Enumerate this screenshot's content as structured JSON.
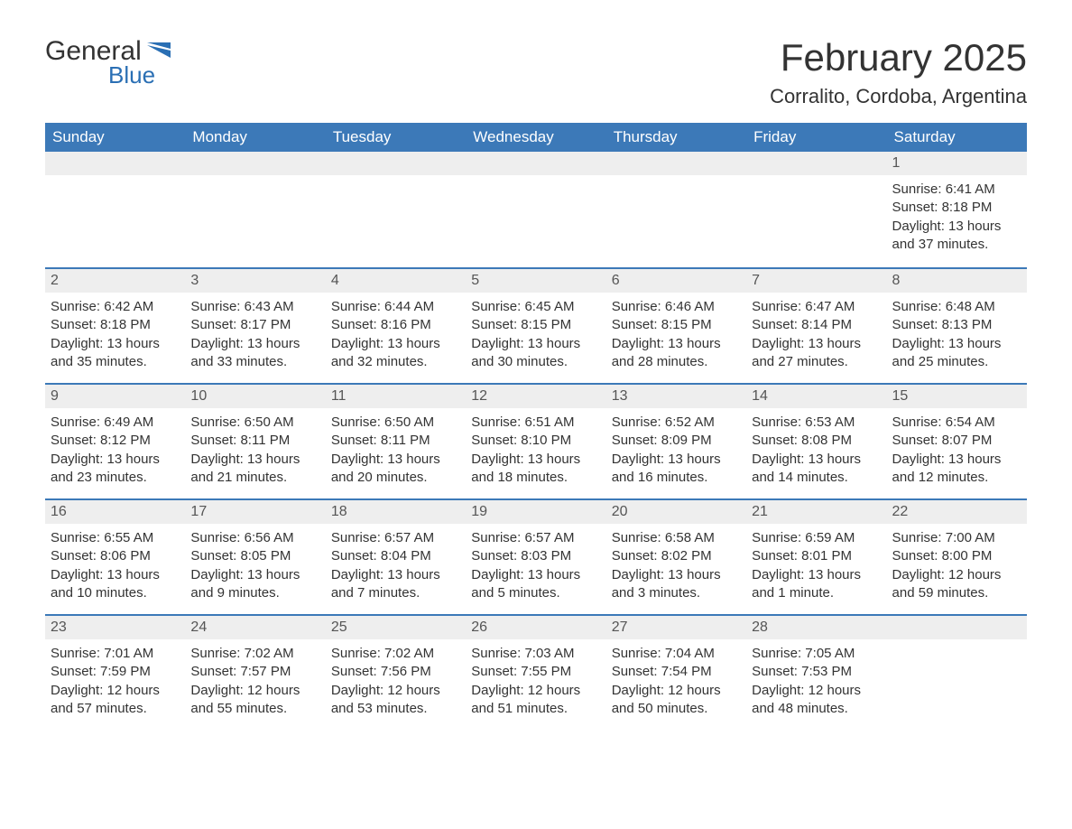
{
  "logo": {
    "word1": "General",
    "word2": "Blue"
  },
  "title": "February 2025",
  "location": "Corralito, Cordoba, Argentina",
  "colors": {
    "header_bg": "#3c79b8",
    "accent": "#2a6fb4",
    "daynum_bg": "#eeeeee",
    "text": "#333333",
    "bg": "#ffffff"
  },
  "weekdays": [
    "Sunday",
    "Monday",
    "Tuesday",
    "Wednesday",
    "Thursday",
    "Friday",
    "Saturday"
  ],
  "labels": {
    "sunrise": "Sunrise:",
    "sunset": "Sunset:",
    "daylight": "Daylight:"
  },
  "weeks": [
    [
      null,
      null,
      null,
      null,
      null,
      null,
      {
        "day": "1",
        "sunrise": "6:41 AM",
        "sunset": "8:18 PM",
        "daylight": "13 hours and 37 minutes."
      }
    ],
    [
      {
        "day": "2",
        "sunrise": "6:42 AM",
        "sunset": "8:18 PM",
        "daylight": "13 hours and 35 minutes."
      },
      {
        "day": "3",
        "sunrise": "6:43 AM",
        "sunset": "8:17 PM",
        "daylight": "13 hours and 33 minutes."
      },
      {
        "day": "4",
        "sunrise": "6:44 AM",
        "sunset": "8:16 PM",
        "daylight": "13 hours and 32 minutes."
      },
      {
        "day": "5",
        "sunrise": "6:45 AM",
        "sunset": "8:15 PM",
        "daylight": "13 hours and 30 minutes."
      },
      {
        "day": "6",
        "sunrise": "6:46 AM",
        "sunset": "8:15 PM",
        "daylight": "13 hours and 28 minutes."
      },
      {
        "day": "7",
        "sunrise": "6:47 AM",
        "sunset": "8:14 PM",
        "daylight": "13 hours and 27 minutes."
      },
      {
        "day": "8",
        "sunrise": "6:48 AM",
        "sunset": "8:13 PM",
        "daylight": "13 hours and 25 minutes."
      }
    ],
    [
      {
        "day": "9",
        "sunrise": "6:49 AM",
        "sunset": "8:12 PM",
        "daylight": "13 hours and 23 minutes."
      },
      {
        "day": "10",
        "sunrise": "6:50 AM",
        "sunset": "8:11 PM",
        "daylight": "13 hours and 21 minutes."
      },
      {
        "day": "11",
        "sunrise": "6:50 AM",
        "sunset": "8:11 PM",
        "daylight": "13 hours and 20 minutes."
      },
      {
        "day": "12",
        "sunrise": "6:51 AM",
        "sunset": "8:10 PM",
        "daylight": "13 hours and 18 minutes."
      },
      {
        "day": "13",
        "sunrise": "6:52 AM",
        "sunset": "8:09 PM",
        "daylight": "13 hours and 16 minutes."
      },
      {
        "day": "14",
        "sunrise": "6:53 AM",
        "sunset": "8:08 PM",
        "daylight": "13 hours and 14 minutes."
      },
      {
        "day": "15",
        "sunrise": "6:54 AM",
        "sunset": "8:07 PM",
        "daylight": "13 hours and 12 minutes."
      }
    ],
    [
      {
        "day": "16",
        "sunrise": "6:55 AM",
        "sunset": "8:06 PM",
        "daylight": "13 hours and 10 minutes."
      },
      {
        "day": "17",
        "sunrise": "6:56 AM",
        "sunset": "8:05 PM",
        "daylight": "13 hours and 9 minutes."
      },
      {
        "day": "18",
        "sunrise": "6:57 AM",
        "sunset": "8:04 PM",
        "daylight": "13 hours and 7 minutes."
      },
      {
        "day": "19",
        "sunrise": "6:57 AM",
        "sunset": "8:03 PM",
        "daylight": "13 hours and 5 minutes."
      },
      {
        "day": "20",
        "sunrise": "6:58 AM",
        "sunset": "8:02 PM",
        "daylight": "13 hours and 3 minutes."
      },
      {
        "day": "21",
        "sunrise": "6:59 AM",
        "sunset": "8:01 PM",
        "daylight": "13 hours and 1 minute."
      },
      {
        "day": "22",
        "sunrise": "7:00 AM",
        "sunset": "8:00 PM",
        "daylight": "12 hours and 59 minutes."
      }
    ],
    [
      {
        "day": "23",
        "sunrise": "7:01 AM",
        "sunset": "7:59 PM",
        "daylight": "12 hours and 57 minutes."
      },
      {
        "day": "24",
        "sunrise": "7:02 AM",
        "sunset": "7:57 PM",
        "daylight": "12 hours and 55 minutes."
      },
      {
        "day": "25",
        "sunrise": "7:02 AM",
        "sunset": "7:56 PM",
        "daylight": "12 hours and 53 minutes."
      },
      {
        "day": "26",
        "sunrise": "7:03 AM",
        "sunset": "7:55 PM",
        "daylight": "12 hours and 51 minutes."
      },
      {
        "day": "27",
        "sunrise": "7:04 AM",
        "sunset": "7:54 PM",
        "daylight": "12 hours and 50 minutes."
      },
      {
        "day": "28",
        "sunrise": "7:05 AM",
        "sunset": "7:53 PM",
        "daylight": "12 hours and 48 minutes."
      },
      null
    ]
  ]
}
